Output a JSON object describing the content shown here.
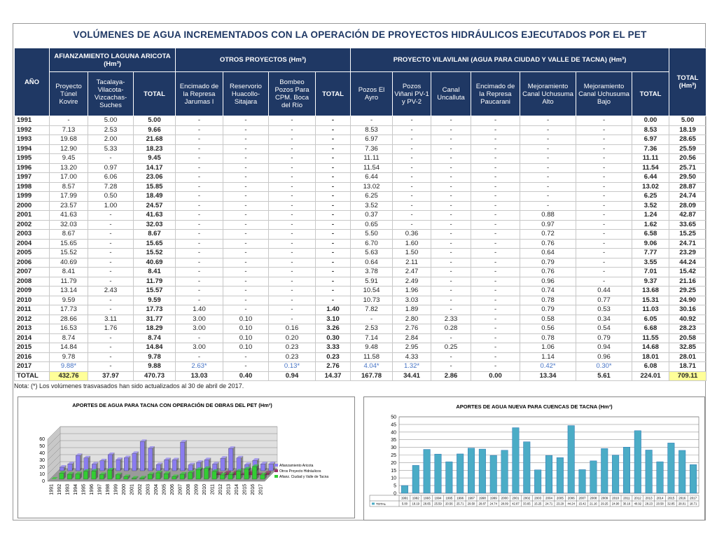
{
  "title": "VOLÚMENES DE AGUA INCREMENTADOS CON LA OPERACIÓN DE PROYECTOS HIDRÁULICOS EJECUTADOS POR EL PET",
  "table": {
    "year_header": "AÑO",
    "groups": [
      "AFIANZAMIENTO LAGUNA ARICOTA (Hm³)",
      "OTROS PROYECTOS (Hm³)",
      "PROYECTO VILAVILANI (AGUA PARA CIUDAD Y VALLE DE TACNA) (Hm³)"
    ],
    "grand_total_header": "TOTAL (Hm³)",
    "columns": [
      "Proyecto Túnel Kovire",
      "Tacalaya-Vilacota-Vizcachas-Suches",
      "TOTAL",
      "Encimado de la Represa Jarumas I",
      "Reservorio Huacollo-Sitajara",
      "Bombeo Pozos Para CPM. Boca del Río",
      "TOTAL",
      "Pozos El Ayro",
      "Pozos Viñani PV-1 y PV-2",
      "Canal Uncalluta",
      "Encimado de la Represa Paucarani",
      "Mejoramiento Canal Uchusuma Alto",
      "Mejoramiento Canal Uchusuma Bajo",
      "TOTAL"
    ],
    "rows": [
      [
        "1991",
        "-",
        "5.00",
        "5.00",
        "-",
        "-",
        "-",
        "-",
        "-",
        "-",
        "-",
        "-",
        "-",
        "-",
        "0.00",
        "5.00"
      ],
      [
        "1992",
        "7.13",
        "2.53",
        "9.66",
        "-",
        "-",
        "-",
        "-",
        "8.53",
        "-",
        "-",
        "-",
        "-",
        "-",
        "8.53",
        "18.19"
      ],
      [
        "1993",
        "19.68",
        "2.00",
        "21.68",
        "-",
        "-",
        "-",
        "-",
        "6.97",
        "-",
        "-",
        "-",
        "-",
        "-",
        "6.97",
        "28.65"
      ],
      [
        "1994",
        "12.90",
        "5.33",
        "18.23",
        "-",
        "-",
        "-",
        "-",
        "7.36",
        "-",
        "-",
        "-",
        "-",
        "-",
        "7.36",
        "25.59"
      ],
      [
        "1995",
        "9.45",
        "-",
        "9.45",
        "-",
        "-",
        "-",
        "-",
        "11.11",
        "-",
        "-",
        "-",
        "-",
        "-",
        "11.11",
        "20.56"
      ],
      [
        "1996",
        "13.20",
        "0.97",
        "14.17",
        "-",
        "-",
        "-",
        "-",
        "11.54",
        "-",
        "-",
        "-",
        "-",
        "-",
        "11.54",
        "25.71"
      ],
      [
        "1997",
        "17.00",
        "6.06",
        "23.06",
        "-",
        "-",
        "-",
        "-",
        "6.44",
        "-",
        "-",
        "-",
        "-",
        "-",
        "6.44",
        "29.50"
      ],
      [
        "1998",
        "8.57",
        "7.28",
        "15.85",
        "-",
        "-",
        "-",
        "-",
        "13.02",
        "-",
        "-",
        "-",
        "-",
        "-",
        "13.02",
        "28.87"
      ],
      [
        "1999",
        "17.99",
        "0.50",
        "18.49",
        "-",
        "-",
        "-",
        "-",
        "6.25",
        "-",
        "-",
        "-",
        "-",
        "-",
        "6.25",
        "24.74"
      ],
      [
        "2000",
        "23.57",
        "1.00",
        "24.57",
        "-",
        "-",
        "-",
        "-",
        "3.52",
        "-",
        "-",
        "-",
        "-",
        "-",
        "3.52",
        "28.09"
      ],
      [
        "2001",
        "41.63",
        "-",
        "41.63",
        "-",
        "-",
        "-",
        "-",
        "0.37",
        "-",
        "-",
        "-",
        "0.88",
        "-",
        "1.24",
        "42.87"
      ],
      [
        "2002",
        "32.03",
        "-",
        "32.03",
        "-",
        "-",
        "-",
        "-",
        "0.65",
        "-",
        "-",
        "-",
        "0.97",
        "-",
        "1.62",
        "33.65"
      ],
      [
        "2003",
        "8.67",
        "-",
        "8.67",
        "-",
        "-",
        "-",
        "-",
        "5.50",
        "0.36",
        "-",
        "-",
        "0.72",
        "-",
        "6.58",
        "15.25"
      ],
      [
        "2004",
        "15.65",
        "-",
        "15.65",
        "-",
        "-",
        "-",
        "-",
        "6.70",
        "1.60",
        "-",
        "-",
        "0.76",
        "-",
        "9.06",
        "24.71"
      ],
      [
        "2005",
        "15.52",
        "-",
        "15.52",
        "-",
        "-",
        "-",
        "-",
        "5.63",
        "1.50",
        "-",
        "-",
        "0.64",
        "-",
        "7.77",
        "23.29"
      ],
      [
        "2006",
        "40.69",
        "-",
        "40.69",
        "-",
        "-",
        "-",
        "-",
        "0.64",
        "2.11",
        "-",
        "-",
        "0.79",
        "-",
        "3.55",
        "44.24"
      ],
      [
        "2007",
        "8.41",
        "-",
        "8.41",
        "-",
        "-",
        "-",
        "-",
        "3.78",
        "2.47",
        "-",
        "-",
        "0.76",
        "-",
        "7.01",
        "15.42"
      ],
      [
        "2008",
        "11.79",
        "-",
        "11.79",
        "-",
        "-",
        "-",
        "-",
        "5.91",
        "2.49",
        "-",
        "-",
        "0.96",
        "-",
        "9.37",
        "21.16"
      ],
      [
        "2009",
        "13.14",
        "2.43",
        "15.57",
        "-",
        "-",
        "-",
        "-",
        "10.54",
        "1.96",
        "-",
        "-",
        "0.74",
        "0.44",
        "13.68",
        "29.25"
      ],
      [
        "2010",
        "9.59",
        "-",
        "9.59",
        "-",
        "-",
        "-",
        "-",
        "10.73",
        "3.03",
        "-",
        "-",
        "0.78",
        "0.77",
        "15.31",
        "24.90"
      ],
      [
        "2011",
        "17.73",
        "-",
        "17.73",
        "1.40",
        "-",
        "-",
        "1.40",
        "7.82",
        "1.89",
        "-",
        "-",
        "0.79",
        "0.53",
        "11.03",
        "30.16"
      ],
      [
        "2012",
        "28.66",
        "3.11",
        "31.77",
        "3.00",
        "0.10",
        "-",
        "3.10",
        "-",
        "2.80",
        "2.33",
        "-",
        "0.58",
        "0.34",
        "6.05",
        "40.92"
      ],
      [
        "2013",
        "16.53",
        "1.76",
        "18.29",
        "3.00",
        "0.10",
        "0.16",
        "3.26",
        "2.53",
        "2.76",
        "0.28",
        "-",
        "0.56",
        "0.54",
        "6.68",
        "28.23"
      ],
      [
        "2014",
        "8.74",
        "-",
        "8.74",
        "-",
        "0.10",
        "0.20",
        "0.30",
        "7.14",
        "2.84",
        "-",
        "-",
        "0.78",
        "0.79",
        "11.55",
        "20.58"
      ],
      [
        "2015",
        "14.84",
        "-",
        "14.84",
        "3.00",
        "0.10",
        "0.23",
        "3.33",
        "9.48",
        "2.95",
        "0.25",
        "-",
        "1.06",
        "0.94",
        "14.68",
        "32.85"
      ],
      [
        "2016",
        "9.78",
        "-",
        "9.78",
        "-",
        "-",
        "0.23",
        "0.23",
        "11.58",
        "4.33",
        "-",
        "-",
        "1.14",
        "0.96",
        "18.01",
        "28.01"
      ],
      [
        "2017",
        "9.88*",
        "-",
        "9.88",
        "2.63*",
        "-",
        "0.13*",
        "2.76",
        "4.04*",
        "1.32*",
        "-",
        "-",
        "0.42*",
        "0.30*",
        "6.08",
        "18.71"
      ],
      [
        "TOTAL",
        "432.76",
        "37.97",
        "470.73",
        "13.03",
        "0.40",
        "0.94",
        "14.37",
        "167.78",
        "34.41",
        "2.86",
        "0.00",
        "13.34",
        "5.61",
        "224.01",
        "709.11"
      ]
    ]
  },
  "note": "Nota: (*) Los volúmenes trasvasados han sido actualizados al 30 de abril de 2017.",
  "chart_data": [
    {
      "type": "bar3d",
      "title": "APORTES DE AGUA PARA TACNA CON OPERACIÓN DE OBRAS DEL PET (Hm³)",
      "categories": [
        "1991",
        "1992",
        "1993",
        "1994",
        "1995",
        "1996",
        "1997",
        "1998",
        "1999",
        "2000",
        "2001",
        "2002",
        "2003",
        "2004",
        "2005",
        "2006",
        "2007",
        "2008",
        "2009",
        "2010",
        "2011",
        "2012",
        "2013",
        "2014",
        "2015",
        "2016",
        "2017"
      ],
      "series": [
        {
          "name": "Afianzamiento Aricota",
          "color": "#8a7cf0",
          "values": [
            5.0,
            9.66,
            21.68,
            18.23,
            9.45,
            14.17,
            23.06,
            15.85,
            18.49,
            24.57,
            41.63,
            32.03,
            8.67,
            15.65,
            15.52,
            40.69,
            8.41,
            11.79,
            15.57,
            9.59,
            17.73,
            31.77,
            18.29,
            8.74,
            14.84,
            9.78,
            9.88
          ]
        },
        {
          "name": "Otros Proyecto Hidráulicos",
          "color": "#993366",
          "values": [
            null,
            null,
            null,
            null,
            null,
            null,
            null,
            null,
            null,
            null,
            null,
            null,
            null,
            null,
            null,
            null,
            null,
            null,
            null,
            null,
            1.4,
            3.1,
            3.26,
            0.3,
            3.33,
            0.23,
            2.76
          ]
        },
        {
          "name": "Afianz. Ciudad y Valle de Tacna",
          "color": "#33cc33",
          "values": [
            0.0,
            8.53,
            6.97,
            7.36,
            11.11,
            11.54,
            6.44,
            13.02,
            6.25,
            3.52,
            1.24,
            1.62,
            6.58,
            9.06,
            7.77,
            3.55,
            7.01,
            9.37,
            13.68,
            15.31,
            11.03,
            6.05,
            6.68,
            11.55,
            14.68,
            18.01,
            6.08
          ]
        }
      ],
      "ylim": [
        0,
        60
      ],
      "yticks": [
        0,
        10,
        20,
        30,
        40,
        50,
        60
      ],
      "grid": true,
      "legend": "right"
    },
    {
      "type": "bar",
      "title": "APORTES DE AGUA NUEVA PARA CUENCAS DE TACNA (Hm³)",
      "categories": [
        "1991",
        "1992",
        "1993",
        "1994",
        "1995",
        "1996",
        "1997",
        "1998",
        "1999",
        "2000",
        "2001",
        "2002",
        "2003",
        "2004",
        "2005",
        "2006",
        "2007",
        "2008",
        "2009",
        "2010",
        "2011",
        "2012",
        "2013",
        "2014",
        "2015",
        "2016",
        "2017"
      ],
      "series": [
        {
          "name": "TOTAL",
          "color": "#4bacc6",
          "values": [
            5.0,
            18.19,
            28.65,
            25.59,
            20.56,
            25.71,
            29.5,
            28.87,
            24.74,
            28.09,
            42.87,
            33.65,
            15.25,
            24.71,
            23.29,
            44.24,
            15.42,
            21.16,
            29.25,
            24.9,
            30.16,
            40.92,
            28.23,
            20.58,
            32.85,
            28.01,
            18.71
          ],
          "value_labels": [
            "5.00",
            "18.19",
            "28.65",
            "25.59",
            "20.56",
            "25.71",
            "29.50",
            "28.87",
            "24.74",
            "28.09",
            "42.87",
            "33.65",
            "15.25",
            "24.71",
            "23.29",
            "44.24",
            "15.42",
            "21.16",
            "29.25",
            "24.90",
            "30.16",
            "40.92",
            "28.23",
            "20.58",
            "32.85",
            "28.01",
            "18.71"
          ]
        }
      ],
      "ylim": [
        0,
        50
      ],
      "yticks": [
        0,
        5,
        10,
        15,
        20,
        25,
        30,
        35,
        40,
        45,
        50
      ],
      "grid": true,
      "legend": "table"
    }
  ]
}
